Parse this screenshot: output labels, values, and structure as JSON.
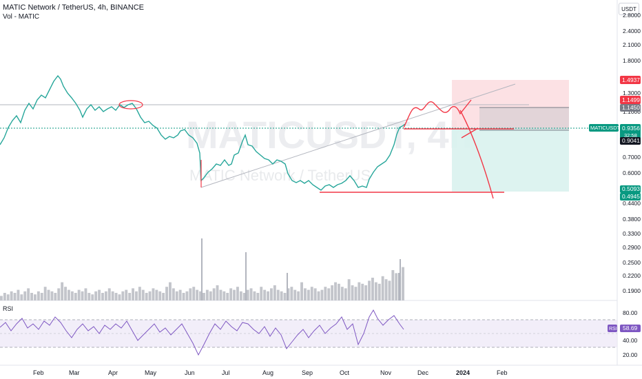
{
  "header": {
    "symbol_title": "MATIC Network / TetherUS, 4h, BINANCE",
    "volume_label": "Vol - MATIC"
  },
  "currency_button": "USDT",
  "price_axis": {
    "ticks": [
      "2.8000",
      "2.4000",
      "2.1000",
      "1.8000",
      "1.3000",
      "1.1000",
      "0.7000",
      "0.6000",
      "0.4400",
      "0.3800",
      "0.3300",
      "0.2900",
      "0.2500",
      "0.2200",
      "0.1900"
    ]
  },
  "price_tags": {
    "stop_high": "1.4937",
    "upper_1": "1.1499",
    "upper_2": "1.1450",
    "symbol": "MATICUSDT",
    "last_price": "0.9356",
    "countdown": "32:58",
    "entry": "0.9041",
    "target_1": "0.5093",
    "target_2": "0.4945"
  },
  "rsi_panel": {
    "label": "RSI",
    "ticks": [
      "80.00",
      "40.00",
      "20.00"
    ],
    "value_tag_label": "RSI",
    "value": "58.69"
  },
  "time_axis": {
    "labels": [
      "Feb",
      "Mar",
      "Apr",
      "May",
      "Jun",
      "Jul",
      "Aug",
      "Sep",
      "Oct",
      "Nov",
      "Dec",
      "2024",
      "Feb"
    ]
  },
  "watermark": {
    "symbol": "MATICUSDT, 4h",
    "name": "MATIC Network / TetherUS"
  },
  "colors": {
    "candle": "#26a69a",
    "price_line": "#089981",
    "drawing": "#f23645",
    "rsi_line": "#7e57c2",
    "rsi_band": "#ede7f6",
    "stop_zone": "#fbdadd",
    "target_zone": "#d9f2ee"
  },
  "series": {
    "price_path": [
      [
        0,
        210
      ],
      [
        6,
        200
      ],
      [
        12,
        185
      ],
      [
        18,
        175
      ],
      [
        24,
        168
      ],
      [
        30,
        178
      ],
      [
        36,
        160
      ],
      [
        42,
        150
      ],
      [
        48,
        158
      ],
      [
        54,
        145
      ],
      [
        60,
        138
      ],
      [
        66,
        142
      ],
      [
        72,
        130
      ],
      [
        78,
        118
      ],
      [
        84,
        110
      ],
      [
        88,
        115
      ],
      [
        92,
        125
      ],
      [
        98,
        135
      ],
      [
        104,
        142
      ],
      [
        110,
        150
      ],
      [
        116,
        160
      ],
      [
        120,
        170
      ],
      [
        126,
        158
      ],
      [
        132,
        152
      ],
      [
        138,
        160
      ],
      [
        144,
        155
      ],
      [
        150,
        162
      ],
      [
        156,
        158
      ],
      [
        162,
        155
      ],
      [
        168,
        160
      ],
      [
        174,
        152
      ],
      [
        180,
        156
      ],
      [
        186,
        152
      ],
      [
        192,
        150
      ],
      [
        198,
        158
      ],
      [
        204,
        170
      ],
      [
        210,
        178
      ],
      [
        216,
        176
      ],
      [
        222,
        182
      ],
      [
        228,
        186
      ],
      [
        234,
        196
      ],
      [
        240,
        202
      ],
      [
        246,
        198
      ],
      [
        252,
        200
      ],
      [
        258,
        196
      ],
      [
        262,
        190
      ],
      [
        268,
        188
      ],
      [
        274,
        196
      ],
      [
        280,
        200
      ],
      [
        286,
        208
      ],
      [
        290,
        222
      ],
      [
        292,
        262
      ],
      [
        296,
        258
      ],
      [
        302,
        250
      ],
      [
        308,
        245
      ],
      [
        314,
        238
      ],
      [
        320,
        240
      ],
      [
        326,
        232
      ],
      [
        332,
        240
      ],
      [
        336,
        238
      ],
      [
        340,
        225
      ],
      [
        346,
        222
      ],
      [
        352,
        205
      ],
      [
        356,
        196
      ],
      [
        360,
        210
      ],
      [
        366,
        212
      ],
      [
        372,
        220
      ],
      [
        378,
        225
      ],
      [
        384,
        230
      ],
      [
        390,
        232
      ],
      [
        396,
        238
      ],
      [
        402,
        232
      ],
      [
        408,
        234
      ],
      [
        414,
        238
      ],
      [
        418,
        252
      ],
      [
        424,
        262
      ],
      [
        430,
        265
      ],
      [
        436,
        262
      ],
      [
        442,
        266
      ],
      [
        448,
        262
      ],
      [
        454,
        268
      ],
      [
        460,
        272
      ],
      [
        466,
        276
      ],
      [
        472,
        270
      ],
      [
        478,
        268
      ],
      [
        484,
        272
      ],
      [
        490,
        268
      ],
      [
        496,
        266
      ],
      [
        502,
        262
      ],
      [
        508,
        255
      ],
      [
        514,
        262
      ],
      [
        520,
        272
      ],
      [
        526,
        270
      ],
      [
        532,
        272
      ],
      [
        536,
        260
      ],
      [
        542,
        250
      ],
      [
        548,
        242
      ],
      [
        554,
        238
      ],
      [
        560,
        234
      ],
      [
        566,
        225
      ],
      [
        572,
        210
      ],
      [
        576,
        195
      ],
      [
        580,
        185
      ],
      [
        584,
        183
      ],
      [
        588,
        180
      ]
    ],
    "volume_bars": [
      3,
      5,
      4,
      6,
      5,
      7,
      4,
      6,
      8,
      5,
      4,
      6,
      5,
      9,
      7,
      6,
      5,
      8,
      12,
      9,
      7,
      6,
      5,
      7,
      6,
      8,
      5,
      4,
      6,
      7,
      5,
      6,
      8,
      6,
      5,
      4,
      6,
      7,
      5,
      8,
      6,
      9,
      7,
      5,
      6,
      8,
      7,
      6,
      5,
      9,
      12,
      8,
      6,
      7,
      5,
      6,
      8,
      9,
      7,
      6,
      5,
      7,
      6,
      8,
      10,
      7,
      6,
      5,
      8,
      7,
      9,
      6,
      5,
      7,
      8,
      6,
      5,
      9,
      7,
      6,
      8,
      10,
      7,
      6,
      5,
      8,
      9,
      7,
      6,
      12,
      8,
      7,
      9,
      8,
      6,
      7,
      9,
      8,
      10,
      12,
      11,
      9,
      8,
      14,
      10,
      9,
      12,
      11,
      10,
      13,
      15,
      12,
      11,
      16,
      14,
      13,
      20,
      18,
      16,
      22
    ],
    "rsi_path": [
      [
        0,
        475
      ],
      [
        8,
        468
      ],
      [
        16,
        480
      ],
      [
        24,
        470
      ],
      [
        32,
        462
      ],
      [
        40,
        476
      ],
      [
        48,
        470
      ],
      [
        56,
        478
      ],
      [
        64,
        466
      ],
      [
        72,
        472
      ],
      [
        80,
        460
      ],
      [
        88,
        468
      ],
      [
        96,
        480
      ],
      [
        104,
        490
      ],
      [
        112,
        478
      ],
      [
        120,
        470
      ],
      [
        128,
        480
      ],
      [
        136,
        474
      ],
      [
        144,
        484
      ],
      [
        152,
        472
      ],
      [
        160,
        478
      ],
      [
        168,
        470
      ],
      [
        176,
        476
      ],
      [
        184,
        466
      ],
      [
        192,
        480
      ],
      [
        200,
        494
      ],
      [
        208,
        486
      ],
      [
        216,
        478
      ],
      [
        224,
        470
      ],
      [
        232,
        482
      ],
      [
        240,
        476
      ],
      [
        248,
        486
      ],
      [
        256,
        478
      ],
      [
        264,
        470
      ],
      [
        272,
        484
      ],
      [
        280,
        498
      ],
      [
        288,
        515
      ],
      [
        296,
        500
      ],
      [
        304,
        484
      ],
      [
        312,
        470
      ],
      [
        320,
        478
      ],
      [
        328,
        466
      ],
      [
        336,
        474
      ],
      [
        344,
        480
      ],
      [
        352,
        468
      ],
      [
        360,
        470
      ],
      [
        368,
        478
      ],
      [
        376,
        484
      ],
      [
        384,
        474
      ],
      [
        392,
        488
      ],
      [
        400,
        476
      ],
      [
        408,
        486
      ],
      [
        416,
        506
      ],
      [
        424,
        496
      ],
      [
        432,
        486
      ],
      [
        440,
        478
      ],
      [
        448,
        490
      ],
      [
        456,
        480
      ],
      [
        464,
        472
      ],
      [
        472,
        484
      ],
      [
        480,
        476
      ],
      [
        488,
        470
      ],
      [
        496,
        460
      ],
      [
        504,
        478
      ],
      [
        512,
        470
      ],
      [
        520,
        500
      ],
      [
        528,
        484
      ],
      [
        536,
        460
      ],
      [
        542,
        450
      ],
      [
        548,
        462
      ],
      [
        556,
        472
      ],
      [
        564,
        464
      ],
      [
        572,
        458
      ],
      [
        580,
        470
      ],
      [
        586,
        478
      ]
    ]
  }
}
